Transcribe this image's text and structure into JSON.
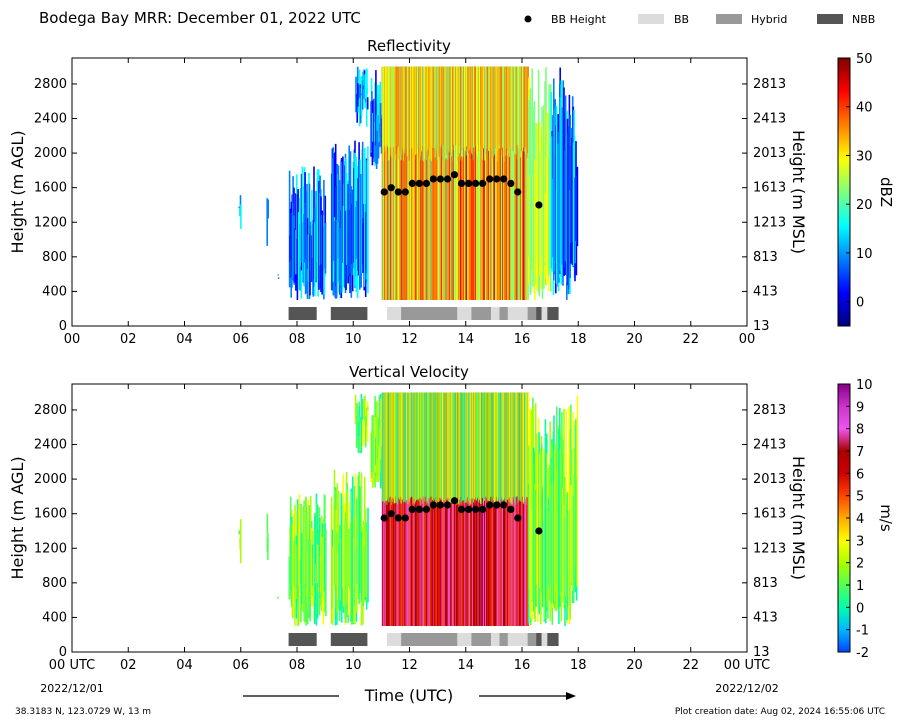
{
  "figure": {
    "title": "Bodega Bay MRR:  December 01, 2022 UTC",
    "legend": [
      {
        "label": "BB Height",
        "kind": "dot",
        "color": "#000000"
      },
      {
        "label": "BB",
        "kind": "patch",
        "color": "#dcdcdc"
      },
      {
        "label": "Hybrid",
        "kind": "patch",
        "color": "#999999"
      },
      {
        "label": "NBB",
        "kind": "patch",
        "color": "#555555"
      }
    ],
    "x_axis_label": "Time (UTC)",
    "x_start_label": "00 UTC",
    "x_start_date": "2022/12/01",
    "x_end_label": "00 UTC",
    "x_end_date": "2022/12/02",
    "footer_left": "38.3183 N, 123.0729 W, 13 m",
    "footer_right": "Plot creation date: Aug 02, 2024 16:55:06 UTC"
  },
  "chart_data": [
    {
      "type": "heatmap",
      "title": "Reflectivity",
      "ylabel": "Height (m AGL)",
      "y2label": "Height (m MSL)",
      "colorbar_label": "dBZ",
      "xlim": [
        0,
        24
      ],
      "ylim": [
        0,
        3100
      ],
      "x_ticks": [
        "00",
        "02",
        "04",
        "06",
        "08",
        "10",
        "12",
        "14",
        "16",
        "18",
        "20",
        "22",
        "00"
      ],
      "y_ticks": [
        0,
        400,
        800,
        1200,
        1600,
        2000,
        2400,
        2800
      ],
      "y2_ticks": [
        13,
        413,
        813,
        1213,
        1613,
        2013,
        2413,
        2813
      ],
      "colorbar_range": [
        -5,
        50
      ],
      "colorbar_ticks": [
        0,
        10,
        20,
        30,
        40,
        50
      ],
      "colors": [
        "#00007f",
        "#0000ff",
        "#007fff",
        "#00ffff",
        "#7fff7f",
        "#ffff00",
        "#ff7f00",
        "#ff0000",
        "#7f0000"
      ],
      "bb_height": [
        {
          "t": 11.1,
          "h": 1550
        },
        {
          "t": 11.35,
          "h": 1600
        },
        {
          "t": 11.6,
          "h": 1550
        },
        {
          "t": 11.85,
          "h": 1550
        },
        {
          "t": 12.1,
          "h": 1650
        },
        {
          "t": 12.35,
          "h": 1650
        },
        {
          "t": 12.6,
          "h": 1650
        },
        {
          "t": 12.85,
          "h": 1700
        },
        {
          "t": 13.1,
          "h": 1700
        },
        {
          "t": 13.35,
          "h": 1700
        },
        {
          "t": 13.6,
          "h": 1750
        },
        {
          "t": 13.85,
          "h": 1650
        },
        {
          "t": 14.1,
          "h": 1650
        },
        {
          "t": 14.35,
          "h": 1650
        },
        {
          "t": 14.6,
          "h": 1650
        },
        {
          "t": 14.85,
          "h": 1700
        },
        {
          "t": 15.1,
          "h": 1700
        },
        {
          "t": 15.35,
          "h": 1700
        },
        {
          "t": 15.6,
          "h": 1650
        },
        {
          "t": 15.85,
          "h": 1550
        },
        {
          "t": 16.6,
          "h": 1400
        }
      ],
      "bb_type": [
        {
          "start": 7.7,
          "end": 8.7,
          "type": "NBB"
        },
        {
          "start": 9.2,
          "end": 10.5,
          "type": "NBB"
        },
        {
          "start": 11.2,
          "end": 11.7,
          "type": "BB"
        },
        {
          "start": 11.7,
          "end": 13.7,
          "type": "Hybrid"
        },
        {
          "start": 13.7,
          "end": 14.2,
          "type": "BB"
        },
        {
          "start": 14.2,
          "end": 14.9,
          "type": "Hybrid"
        },
        {
          "start": 14.9,
          "end": 15.2,
          "type": "BB"
        },
        {
          "start": 15.2,
          "end": 15.5,
          "type": "Hybrid"
        },
        {
          "start": 15.5,
          "end": 16.2,
          "type": "BB"
        },
        {
          "start": 16.2,
          "end": 16.5,
          "type": "Hybrid"
        },
        {
          "start": 16.5,
          "end": 16.7,
          "type": "NBB"
        },
        {
          "start": 16.7,
          "end": 16.9,
          "type": "BB"
        },
        {
          "start": 16.9,
          "end": 17.3,
          "type": "NBB"
        }
      ]
    },
    {
      "type": "heatmap",
      "title": "Vertical Velocity",
      "ylabel": "Height (m AGL)",
      "y2label": "Height (m MSL)",
      "colorbar_label": "m/s",
      "xlim": [
        0,
        24
      ],
      "ylim": [
        0,
        3100
      ],
      "x_ticks": [
        "00 UTC",
        "02",
        "04",
        "06",
        "08",
        "10",
        "12",
        "14",
        "16",
        "18",
        "20",
        "22",
        "00 UTC"
      ],
      "y_ticks": [
        0,
        400,
        800,
        1200,
        1600,
        2000,
        2400,
        2800
      ],
      "y2_ticks": [
        13,
        413,
        813,
        1213,
        1613,
        2013,
        2413,
        2813
      ],
      "colorbar_range": [
        -2,
        10
      ],
      "colorbar_ticks": [
        -2,
        -1,
        0,
        1,
        2,
        3,
        4,
        5,
        6,
        7,
        8,
        9,
        10
      ],
      "colors": [
        "#0044ff",
        "#00b7ff",
        "#00ffaa",
        "#55ff55",
        "#aaff00",
        "#ffff00",
        "#ffaa00",
        "#ff4400",
        "#cc0000",
        "#aa0000",
        "#ee55ee",
        "#cc33cc",
        "#880088"
      ],
      "bb_height": [
        {
          "t": 11.1,
          "h": 1550
        },
        {
          "t": 11.35,
          "h": 1600
        },
        {
          "t": 11.6,
          "h": 1550
        },
        {
          "t": 11.85,
          "h": 1550
        },
        {
          "t": 12.1,
          "h": 1650
        },
        {
          "t": 12.35,
          "h": 1650
        },
        {
          "t": 12.6,
          "h": 1650
        },
        {
          "t": 12.85,
          "h": 1700
        },
        {
          "t": 13.1,
          "h": 1700
        },
        {
          "t": 13.35,
          "h": 1700
        },
        {
          "t": 13.6,
          "h": 1750
        },
        {
          "t": 13.85,
          "h": 1650
        },
        {
          "t": 14.1,
          "h": 1650
        },
        {
          "t": 14.35,
          "h": 1650
        },
        {
          "t": 14.6,
          "h": 1650
        },
        {
          "t": 14.85,
          "h": 1700
        },
        {
          "t": 15.1,
          "h": 1700
        },
        {
          "t": 15.35,
          "h": 1700
        },
        {
          "t": 15.6,
          "h": 1650
        },
        {
          "t": 15.85,
          "h": 1550
        },
        {
          "t": 16.6,
          "h": 1400
        }
      ],
      "bb_type": [
        {
          "start": 7.7,
          "end": 8.7,
          "type": "NBB"
        },
        {
          "start": 9.2,
          "end": 10.5,
          "type": "NBB"
        },
        {
          "start": 11.2,
          "end": 11.7,
          "type": "BB"
        },
        {
          "start": 11.7,
          "end": 13.7,
          "type": "Hybrid"
        },
        {
          "start": 13.7,
          "end": 14.2,
          "type": "BB"
        },
        {
          "start": 14.2,
          "end": 14.9,
          "type": "Hybrid"
        },
        {
          "start": 14.9,
          "end": 15.2,
          "type": "BB"
        },
        {
          "start": 15.2,
          "end": 15.5,
          "type": "Hybrid"
        },
        {
          "start": 15.5,
          "end": 16.2,
          "type": "BB"
        },
        {
          "start": 16.2,
          "end": 16.5,
          "type": "Hybrid"
        },
        {
          "start": 16.5,
          "end": 16.7,
          "type": "NBB"
        },
        {
          "start": 16.7,
          "end": 16.9,
          "type": "BB"
        },
        {
          "start": 16.9,
          "end": 17.3,
          "type": "NBB"
        }
      ]
    }
  ]
}
